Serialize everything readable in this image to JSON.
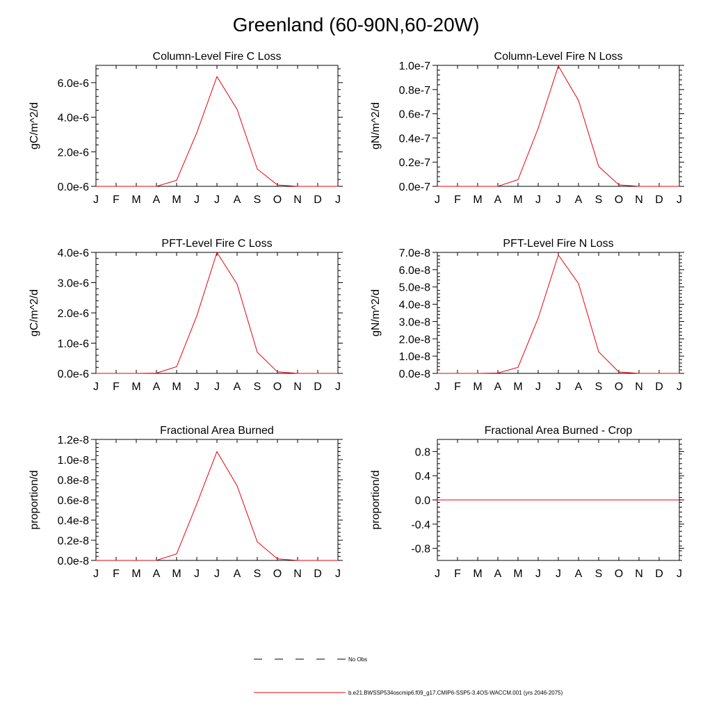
{
  "title": "Greenland (60-90N,60-20W)",
  "legend": {
    "obs_label": "No Obs",
    "model_label": "b.e21.BWSSP534oscmip6.f09_g17.CMIP6-SSP5-3.4OS-WACCM.001 (yrs 2046-2075)",
    "model_color": "#e8000b",
    "obs_color": "#000000"
  },
  "chart_data": [
    {
      "type": "line",
      "title": "Column-Level Fire C Loss",
      "ylabel": "gC/m^2/d",
      "categories": [
        "J",
        "F",
        "M",
        "A",
        "M",
        "J",
        "J",
        "A",
        "S",
        "O",
        "N",
        "D",
        "J"
      ],
      "ylim": [
        0,
        7e-06
      ],
      "yticks": [
        0,
        2e-06,
        4e-06,
        6e-06
      ],
      "yticklabels": [
        "0.0e-6",
        "2.0e-6",
        "4.0e-6",
        "6.0e-6"
      ],
      "series": [
        {
          "values": [
            0,
            0,
            0,
            0,
            3.5e-07,
            3.1e-06,
            6.35e-06,
            4.45e-06,
            1e-06,
            8e-08,
            0,
            0,
            0
          ],
          "color": "#e8000b"
        }
      ]
    },
    {
      "type": "line",
      "title": "Column-Level Fire N Loss",
      "ylabel": "gN/m^2/d",
      "categories": [
        "J",
        "F",
        "M",
        "A",
        "M",
        "J",
        "J",
        "A",
        "S",
        "O",
        "N",
        "D",
        "J"
      ],
      "ylim": [
        0,
        1e-07
      ],
      "yticks": [
        0,
        2e-08,
        4e-08,
        6e-08,
        8e-08,
        1e-07
      ],
      "yticklabels": [
        "0.0e-7",
        "0.2e-7",
        "0.4e-7",
        "0.6e-7",
        "0.8e-7",
        "1.0e-7"
      ],
      "series": [
        {
          "values": [
            0,
            0,
            0,
            0,
            5.5e-09,
            4.8e-08,
            9.95e-08,
            7.1e-08,
            1.65e-08,
            1.2e-09,
            0,
            0,
            0
          ],
          "color": "#e8000b"
        }
      ]
    },
    {
      "type": "line",
      "title": "PFT-Level Fire C Loss",
      "ylabel": "gC/m^2/d",
      "categories": [
        "J",
        "F",
        "M",
        "A",
        "M",
        "J",
        "J",
        "A",
        "S",
        "O",
        "N",
        "D",
        "J"
      ],
      "ylim": [
        0,
        4e-06
      ],
      "yticks": [
        0,
        1e-06,
        2e-06,
        3e-06,
        4e-06
      ],
      "yticklabels": [
        "0.0e-6",
        "1.0e-6",
        "2.0e-6",
        "3.0e-6",
        "4.0e-6"
      ],
      "series": [
        {
          "values": [
            0,
            0,
            0,
            1e-08,
            2.2e-07,
            1.9e-06,
            4e-06,
            2.95e-06,
            7e-07,
            5e-08,
            0,
            0,
            0
          ],
          "color": "#e8000b"
        }
      ]
    },
    {
      "type": "line",
      "title": "PFT-Level Fire N Loss",
      "ylabel": "gN/m^2/d",
      "categories": [
        "J",
        "F",
        "M",
        "A",
        "M",
        "J",
        "J",
        "A",
        "S",
        "O",
        "N",
        "D",
        "J"
      ],
      "ylim": [
        0,
        7e-08
      ],
      "yticks": [
        0,
        1e-08,
        2e-08,
        3e-08,
        4e-08,
        5e-08,
        6e-08,
        7e-08
      ],
      "yticklabels": [
        "0.0e-8",
        "1.0e-8",
        "2.0e-8",
        "3.0e-8",
        "4.0e-8",
        "5.0e-8",
        "6.0e-8",
        "7.0e-8"
      ],
      "series": [
        {
          "values": [
            0,
            0,
            0,
            2e-10,
            3.5e-09,
            3.2e-08,
            6.85e-08,
            5.2e-08,
            1.25e-08,
            8e-10,
            0,
            0,
            0
          ],
          "color": "#e8000b"
        }
      ]
    },
    {
      "type": "line",
      "title": "Fractional Area Burned",
      "ylabel": "proportion/d",
      "categories": [
        "J",
        "F",
        "M",
        "A",
        "M",
        "J",
        "J",
        "A",
        "S",
        "O",
        "N",
        "D",
        "J"
      ],
      "ylim": [
        0,
        1.2e-08
      ],
      "yticks": [
        0,
        2e-09,
        4e-09,
        6e-09,
        8e-09,
        1e-08,
        1.2e-08
      ],
      "yticklabels": [
        "0.0e-8",
        "0.2e-8",
        "0.4e-8",
        "0.6e-8",
        "0.8e-8",
        "1.0e-8",
        "1.2e-8"
      ],
      "series": [
        {
          "values": [
            0,
            0,
            0,
            1e-11,
            6.5e-10,
            5.6e-09,
            1.08e-08,
            7.4e-09,
            1.85e-09,
            1.5e-10,
            0,
            0,
            0
          ],
          "color": "#e8000b"
        }
      ]
    },
    {
      "type": "line",
      "title": "Fractional Area Burned - Crop",
      "ylabel": "proportion/d",
      "categories": [
        "J",
        "F",
        "M",
        "A",
        "M",
        "J",
        "J",
        "A",
        "S",
        "O",
        "N",
        "D",
        "J"
      ],
      "ylim": [
        -1.0,
        1.0
      ],
      "yticks": [
        -0.8,
        -0.4,
        0.0,
        0.4,
        0.8
      ],
      "yticklabels": [
        "-0.8",
        "-0.4",
        "0.0",
        "0.4",
        "0.8"
      ],
      "series": [
        {
          "values": [
            0,
            0,
            0,
            0,
            0,
            0,
            0,
            0,
            0,
            0,
            0,
            0,
            0
          ],
          "color": "#e8000b"
        }
      ]
    }
  ]
}
